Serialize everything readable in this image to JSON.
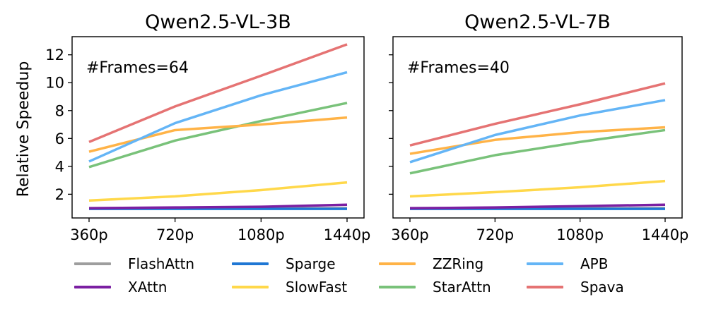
{
  "chart_data": [
    {
      "type": "line",
      "title": "Qwen2.5-VL-3B",
      "annotation": "#Frames=64",
      "xlabel": "",
      "ylabel": "Relative Speedup",
      "categories": [
        "360p",
        "720p",
        "1080p",
        "1440p"
      ],
      "ylim": [
        0.3,
        13.3
      ],
      "yticks": [
        2,
        4,
        6,
        8,
        10,
        12
      ],
      "series": [
        {
          "name": "FlashAttn",
          "color": "#9e9e9e",
          "values": [
            1.0,
            1.0,
            1.0,
            1.0
          ]
        },
        {
          "name": "Sparge",
          "color": "#1f77d4",
          "values": [
            0.95,
            0.95,
            0.95,
            0.95
          ]
        },
        {
          "name": "SlowFast",
          "color": "#ffd84a",
          "values": [
            1.55,
            1.85,
            2.3,
            2.85
          ]
        },
        {
          "name": "XAttn",
          "color": "#7b1fa2",
          "values": [
            1.0,
            1.05,
            1.1,
            1.25
          ]
        },
        {
          "name": "StarAttn",
          "color": "#79c27a",
          "values": [
            3.95,
            5.85,
            7.25,
            8.55
          ]
        },
        {
          "name": "ZZRing",
          "color": "#ffb347",
          "values": [
            5.05,
            6.6,
            7.0,
            7.5
          ]
        },
        {
          "name": "APB",
          "color": "#64b5f6",
          "values": [
            4.35,
            7.1,
            9.1,
            10.75
          ]
        },
        {
          "name": "Spava",
          "color": "#e57373",
          "values": [
            5.75,
            8.3,
            10.5,
            12.75
          ]
        }
      ]
    },
    {
      "type": "line",
      "title": "Qwen2.5-VL-7B",
      "annotation": "#Frames=40",
      "xlabel": "",
      "ylabel": "",
      "categories": [
        "360p",
        "720p",
        "1080p",
        "1440p"
      ],
      "ylim": [
        0.3,
        13.3
      ],
      "yticks": [
        2,
        4,
        6,
        8,
        10,
        12
      ],
      "series": [
        {
          "name": "FlashAttn",
          "color": "#9e9e9e",
          "values": [
            1.0,
            1.0,
            1.0,
            1.0
          ]
        },
        {
          "name": "Sparge",
          "color": "#1f77d4",
          "values": [
            0.95,
            0.95,
            0.95,
            0.95
          ]
        },
        {
          "name": "SlowFast",
          "color": "#ffd84a",
          "values": [
            1.85,
            2.15,
            2.5,
            2.95
          ]
        },
        {
          "name": "XAttn",
          "color": "#7b1fa2",
          "values": [
            1.0,
            1.05,
            1.15,
            1.25
          ]
        },
        {
          "name": "StarAttn",
          "color": "#79c27a",
          "values": [
            3.5,
            4.8,
            5.75,
            6.6
          ]
        },
        {
          "name": "ZZRing",
          "color": "#ffb347",
          "values": [
            4.9,
            5.9,
            6.45,
            6.8
          ]
        },
        {
          "name": "APB",
          "color": "#64b5f6",
          "values": [
            4.3,
            6.25,
            7.65,
            8.75
          ]
        },
        {
          "name": "Spava",
          "color": "#e57373",
          "values": [
            5.5,
            7.05,
            8.45,
            9.95
          ]
        }
      ]
    }
  ],
  "legend": [
    {
      "name": "FlashAttn",
      "color": "#9e9e9e"
    },
    {
      "name": "Sparge",
      "color": "#1f77d4"
    },
    {
      "name": "ZZRing",
      "color": "#ffb347"
    },
    {
      "name": "APB",
      "color": "#64b5f6"
    },
    {
      "name": "XAttn",
      "color": "#7b1fa2"
    },
    {
      "name": "SlowFast",
      "color": "#ffd84a"
    },
    {
      "name": "StarAttn",
      "color": "#79c27a"
    },
    {
      "name": "Spava",
      "color": "#e57373"
    }
  ]
}
